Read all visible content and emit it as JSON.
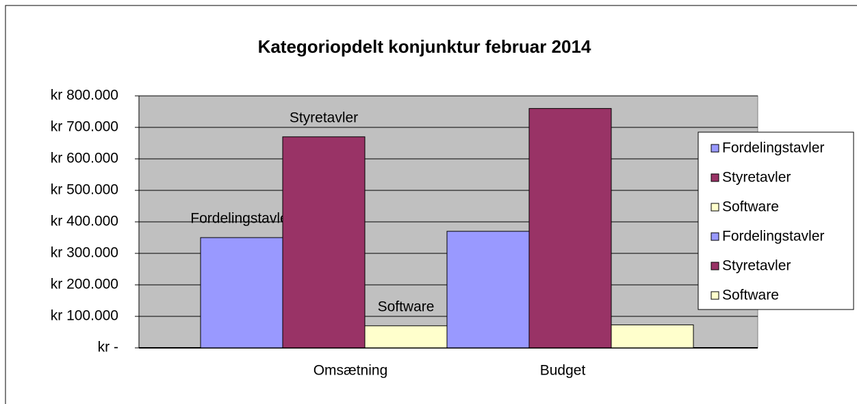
{
  "chart_data": {
    "type": "bar",
    "title": "Kategoriopdelt konjunktur februar 2014",
    "categories": [
      "Omsætning",
      "Budget"
    ],
    "series": [
      {
        "name": "Fordelingstavler",
        "color": "#9999ff",
        "values": [
          350000,
          null
        ]
      },
      {
        "name": "Styretavler",
        "color": "#993366",
        "values": [
          670000,
          null
        ]
      },
      {
        "name": "Software",
        "color": "#ffffcc",
        "values": [
          70000,
          null
        ]
      },
      {
        "name": "Fordelingstavler",
        "color": "#9999ff",
        "values": [
          null,
          370000
        ]
      },
      {
        "name": "Styretavler",
        "color": "#993366",
        "values": [
          null,
          760000
        ]
      },
      {
        "name": "Software",
        "color": "#ffffcc",
        "values": [
          null,
          73000
        ]
      }
    ],
    "ylim": [
      0,
      800000
    ],
    "yticks": [
      {
        "value": 0,
        "label": "kr -"
      },
      {
        "value": 100000,
        "label": "kr 100.000"
      },
      {
        "value": 200000,
        "label": "kr 200.000"
      },
      {
        "value": 300000,
        "label": "kr 300.000"
      },
      {
        "value": 400000,
        "label": "kr 400.000"
      },
      {
        "value": 500000,
        "label": "kr 500.000"
      },
      {
        "value": 600000,
        "label": "kr 600.000"
      },
      {
        "value": 700000,
        "label": "kr 700.000"
      },
      {
        "value": 800000,
        "label": "kr 800.000"
      }
    ],
    "grid": true,
    "plot_background": "#c0c0c0",
    "legend": "right"
  }
}
